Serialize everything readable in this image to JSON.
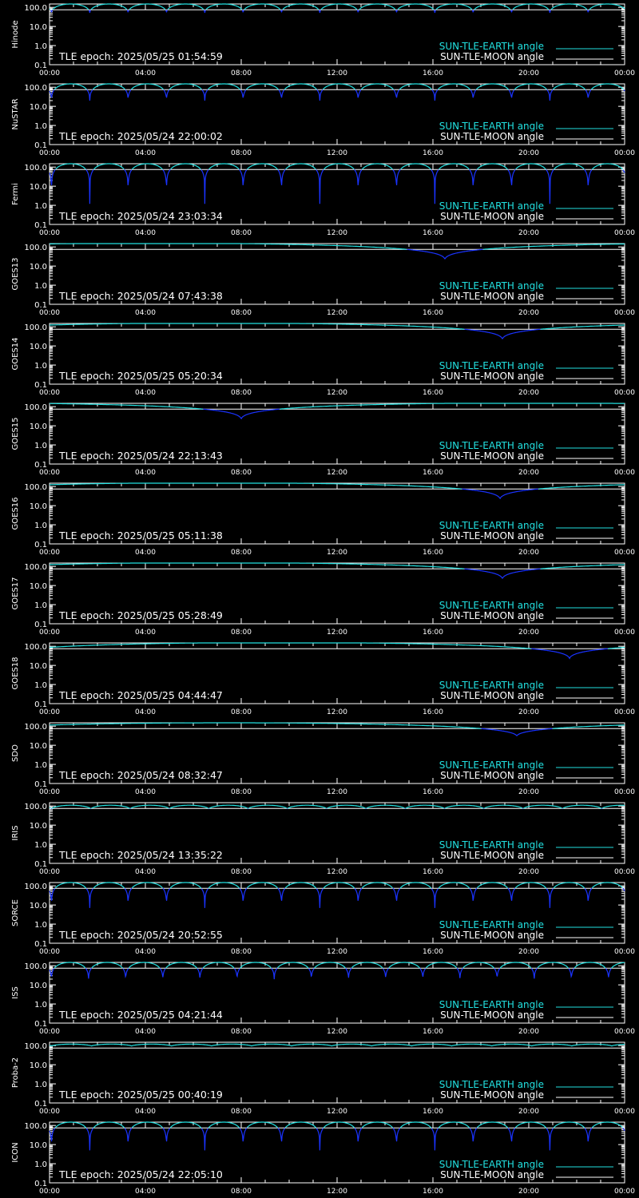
{
  "page": {
    "background": "#000000"
  },
  "colors": {
    "earth": "#22e0e0",
    "moon": "#ffffff",
    "dip": "#1a33ff",
    "axes": "#ffffff",
    "text": "#ffffff"
  },
  "legend": {
    "earth_label": "SUN-TLE-EARTH angle",
    "moon_label": "SUN-TLE-MOON angle",
    "placement": "bottom-right"
  },
  "chart_data": [
    {
      "type": "line",
      "ylabel": "Hinode",
      "epoch": "TLE epoch: 2025/05/25 01:54:59",
      "x_ticks": [
        "00:00",
        "04:00",
        "08:00",
        "12:00",
        "16:00",
        "20:00",
        "00:00"
      ],
      "y_ticks": [
        "100.0",
        "10.0",
        "1.0",
        "0.1"
      ],
      "ylim": [
        0.1,
        150
      ],
      "y_scale": "log",
      "series": [
        {
          "name": "SUN-TLE-EARTH angle",
          "orbit_period_h": 1.6,
          "max_deg": 150,
          "min_deg": 52
        },
        {
          "name": "SUN-TLE-MOON angle",
          "start_deg": 75,
          "end_deg": 75
        }
      ]
    },
    {
      "type": "line",
      "ylabel": "NuSTAR",
      "epoch": "TLE epoch: 2025/05/24 22:00:02",
      "x_ticks": [
        "00:00",
        "04:00",
        "08:00",
        "12:00",
        "16:00",
        "20:00",
        "00:00"
      ],
      "y_ticks": [
        "100.0",
        "10.0",
        "1.0",
        "0.1"
      ],
      "ylim": [
        0.1,
        150
      ],
      "y_scale": "log",
      "series": [
        {
          "name": "SUN-TLE-EARTH angle",
          "orbit_period_h": 1.6,
          "max_deg": 150,
          "min_deg": 20
        },
        {
          "name": "SUN-TLE-MOON angle",
          "start_deg": 75,
          "end_deg": 75
        }
      ]
    },
    {
      "type": "line",
      "ylabel": "Fermi",
      "epoch": "TLE epoch: 2025/05/24 23:03:34",
      "x_ticks": [
        "00:00",
        "04:00",
        "08:00",
        "12:00",
        "16:00",
        "20:00",
        "00:00"
      ],
      "y_ticks": [
        "100.0",
        "10.0",
        "1.0",
        "0.1"
      ],
      "ylim": [
        0.1,
        150
      ],
      "y_scale": "log",
      "series": [
        {
          "name": "SUN-TLE-EARTH angle",
          "orbit_period_h": 1.6,
          "max_deg": 150,
          "min_deg": 1.2
        },
        {
          "name": "SUN-TLE-MOON angle",
          "start_deg": 75,
          "end_deg": 75
        }
      ]
    },
    {
      "type": "line",
      "ylabel": "GOES13",
      "epoch": "TLE epoch: 2025/05/24 07:43:38",
      "x_ticks": [
        "00:00",
        "04:00",
        "08:00",
        "12:00",
        "16:00",
        "20:00",
        "00:00"
      ],
      "y_ticks": [
        "100.0",
        "10.0",
        "1.0",
        "0.1"
      ],
      "ylim": [
        0.1,
        150
      ],
      "y_scale": "log",
      "series": [
        {
          "name": "SUN-TLE-EARTH angle",
          "orbit_period_h": 24,
          "phase_min_h": 4.5,
          "max_deg": 158,
          "min_deg": 22
        },
        {
          "name": "SUN-TLE-MOON angle",
          "start_deg": 75,
          "end_deg": 75
        }
      ]
    },
    {
      "type": "line",
      "ylabel": "GOES14",
      "epoch": "TLE epoch: 2025/05/25 05:20:34",
      "x_ticks": [
        "00:00",
        "04:00",
        "08:00",
        "12:00",
        "16:00",
        "20:00",
        "00:00"
      ],
      "y_ticks": [
        "100.0",
        "10.0",
        "1.0",
        "0.1"
      ],
      "ylim": [
        0.1,
        150
      ],
      "y_scale": "log",
      "series": [
        {
          "name": "SUN-TLE-EARTH angle",
          "orbit_period_h": 24,
          "phase_min_h": 6.9,
          "max_deg": 158,
          "min_deg": 22
        },
        {
          "name": "SUN-TLE-MOON angle",
          "start_deg": 75,
          "end_deg": 75
        }
      ]
    },
    {
      "type": "line",
      "ylabel": "GOES15",
      "epoch": "TLE epoch: 2025/05/24 22:13:43",
      "x_ticks": [
        "00:00",
        "04:00",
        "08:00",
        "12:00",
        "16:00",
        "20:00",
        "00:00"
      ],
      "y_ticks": [
        "100.0",
        "10.0",
        "1.0",
        "0.1"
      ],
      "ylim": [
        0.1,
        150
      ],
      "y_scale": "log",
      "series": [
        {
          "name": "SUN-TLE-EARTH angle",
          "orbit_period_h": 24,
          "phase_min_h": 20,
          "max_deg": 158,
          "min_deg": 22
        },
        {
          "name": "SUN-TLE-MOON angle",
          "start_deg": 75,
          "end_deg": 75
        }
      ]
    },
    {
      "type": "line",
      "ylabel": "GOES16",
      "epoch": "TLE epoch: 2025/05/25 05:11:38",
      "x_ticks": [
        "00:00",
        "04:00",
        "08:00",
        "12:00",
        "16:00",
        "20:00",
        "00:00"
      ],
      "y_ticks": [
        "100.0",
        "10.0",
        "1.0",
        "0.1"
      ],
      "ylim": [
        0.1,
        150
      ],
      "y_scale": "log",
      "series": [
        {
          "name": "SUN-TLE-EARTH angle",
          "orbit_period_h": 24,
          "phase_min_h": 6.8,
          "max_deg": 158,
          "min_deg": 22
        },
        {
          "name": "SUN-TLE-MOON angle",
          "start_deg": 75,
          "end_deg": 75
        }
      ]
    },
    {
      "type": "line",
      "ylabel": "GOES17",
      "epoch": "TLE epoch: 2025/05/25 05:28:49",
      "x_ticks": [
        "00:00",
        "04:00",
        "08:00",
        "12:00",
        "16:00",
        "20:00",
        "00:00"
      ],
      "y_ticks": [
        "100.0",
        "10.0",
        "1.0",
        "0.1"
      ],
      "ylim": [
        0.1,
        150
      ],
      "y_scale": "log",
      "series": [
        {
          "name": "SUN-TLE-EARTH angle",
          "orbit_period_h": 24,
          "phase_min_h": 6.9,
          "max_deg": 158,
          "min_deg": 22
        },
        {
          "name": "SUN-TLE-MOON angle",
          "start_deg": 75,
          "end_deg": 75
        }
      ]
    },
    {
      "type": "line",
      "ylabel": "GOES18",
      "epoch": "TLE epoch: 2025/05/25 04:44:47",
      "x_ticks": [
        "00:00",
        "04:00",
        "08:00",
        "12:00",
        "16:00",
        "20:00",
        "00:00"
      ],
      "y_ticks": [
        "100.0",
        "10.0",
        "1.0",
        "0.1"
      ],
      "ylim": [
        0.1,
        150
      ],
      "y_scale": "log",
      "series": [
        {
          "name": "SUN-TLE-EARTH angle",
          "orbit_period_h": 24,
          "phase_min_h": 9.7,
          "max_deg": 158,
          "min_deg": 22
        },
        {
          "name": "SUN-TLE-MOON angle",
          "start_deg": 75,
          "end_deg": 75
        }
      ]
    },
    {
      "type": "line",
      "ylabel": "SDO",
      "epoch": "TLE epoch: 2025/05/24 08:32:47",
      "x_ticks": [
        "00:00",
        "04:00",
        "08:00",
        "12:00",
        "16:00",
        "20:00",
        "00:00"
      ],
      "y_ticks": [
        "100.0",
        "10.0",
        "1.0",
        "0.1"
      ],
      "ylim": [
        0.1,
        150
      ],
      "y_scale": "log",
      "series": [
        {
          "name": "SUN-TLE-EARTH angle",
          "orbit_period_h": 24,
          "phase_min_h": 7.5,
          "max_deg": 150,
          "min_deg": 30
        },
        {
          "name": "SUN-TLE-MOON angle",
          "start_deg": 75,
          "end_deg": 75
        }
      ]
    },
    {
      "type": "line",
      "ylabel": "IRIS",
      "epoch": "TLE epoch: 2025/05/24 13:35:22",
      "x_ticks": [
        "00:00",
        "04:00",
        "08:00",
        "12:00",
        "16:00",
        "20:00",
        "00:00"
      ],
      "y_ticks": [
        "100.0",
        "10.0",
        "1.0",
        "0.1"
      ],
      "ylim": [
        0.1,
        150
      ],
      "y_scale": "log",
      "series": [
        {
          "name": "SUN-TLE-EARTH angle",
          "orbit_period_h": 1.64,
          "max_deg": 110,
          "min_deg": 70
        },
        {
          "name": "SUN-TLE-MOON angle",
          "start_deg": 75,
          "end_deg": 75
        }
      ]
    },
    {
      "type": "line",
      "ylabel": "SORCE",
      "epoch": "TLE epoch: 2025/05/24 20:52:55",
      "x_ticks": [
        "00:00",
        "04:00",
        "08:00",
        "12:00",
        "16:00",
        "20:00",
        "00:00"
      ],
      "y_ticks": [
        "100.0",
        "10.0",
        "1.0",
        "0.1"
      ],
      "ylim": [
        0.1,
        150
      ],
      "y_scale": "log",
      "series": [
        {
          "name": "SUN-TLE-EARTH angle",
          "orbit_period_h": 1.6,
          "max_deg": 150,
          "min_deg": 7
        },
        {
          "name": "SUN-TLE-MOON angle",
          "start_deg": 75,
          "end_deg": 75
        }
      ]
    },
    {
      "type": "line",
      "ylabel": "ISS",
      "epoch": "TLE epoch: 2025/05/25 04:21:44",
      "x_ticks": [
        "00:00",
        "04:00",
        "08:00",
        "12:00",
        "16:00",
        "20:00",
        "00:00"
      ],
      "y_ticks": [
        "100.0",
        "10.0",
        "1.0",
        "0.1"
      ],
      "ylim": [
        0.1,
        150
      ],
      "y_scale": "log",
      "series": [
        {
          "name": "SUN-TLE-EARTH angle",
          "orbit_period_h": 1.55,
          "max_deg": 150,
          "min_deg": 18
        },
        {
          "name": "SUN-TLE-MOON angle",
          "start_deg": 75,
          "end_deg": 75
        }
      ]
    },
    {
      "type": "line",
      "ylabel": "Proba-2",
      "epoch": "TLE epoch: 2025/05/25 00:40:19",
      "x_ticks": [
        "00:00",
        "04:00",
        "08:00",
        "12:00",
        "16:00",
        "20:00",
        "00:00"
      ],
      "y_ticks": [
        "100.0",
        "10.0",
        "1.0",
        "0.1"
      ],
      "ylim": [
        0.1,
        150
      ],
      "y_scale": "log",
      "series": [
        {
          "name": "SUN-TLE-EARTH angle",
          "orbit_period_h": 1.67,
          "max_deg": 120,
          "min_deg": 95
        },
        {
          "name": "SUN-TLE-MOON angle",
          "start_deg": 75,
          "end_deg": 75
        }
      ]
    },
    {
      "type": "line",
      "ylabel": "ICON",
      "epoch": "TLE epoch: 2025/05/24 22:05:10",
      "x_ticks": [
        "00:00",
        "04:00",
        "08:00",
        "12:00",
        "16:00",
        "20:00",
        "00:00"
      ],
      "y_ticks": [
        "100.0",
        "10.0",
        "1.0",
        "0.1"
      ],
      "ylim": [
        0.1,
        150
      ],
      "y_scale": "log",
      "series": [
        {
          "name": "SUN-TLE-EARTH angle",
          "orbit_period_h": 1.6,
          "max_deg": 150,
          "min_deg": 5
        },
        {
          "name": "SUN-TLE-MOON angle",
          "start_deg": 75,
          "end_deg": 75
        }
      ]
    }
  ]
}
